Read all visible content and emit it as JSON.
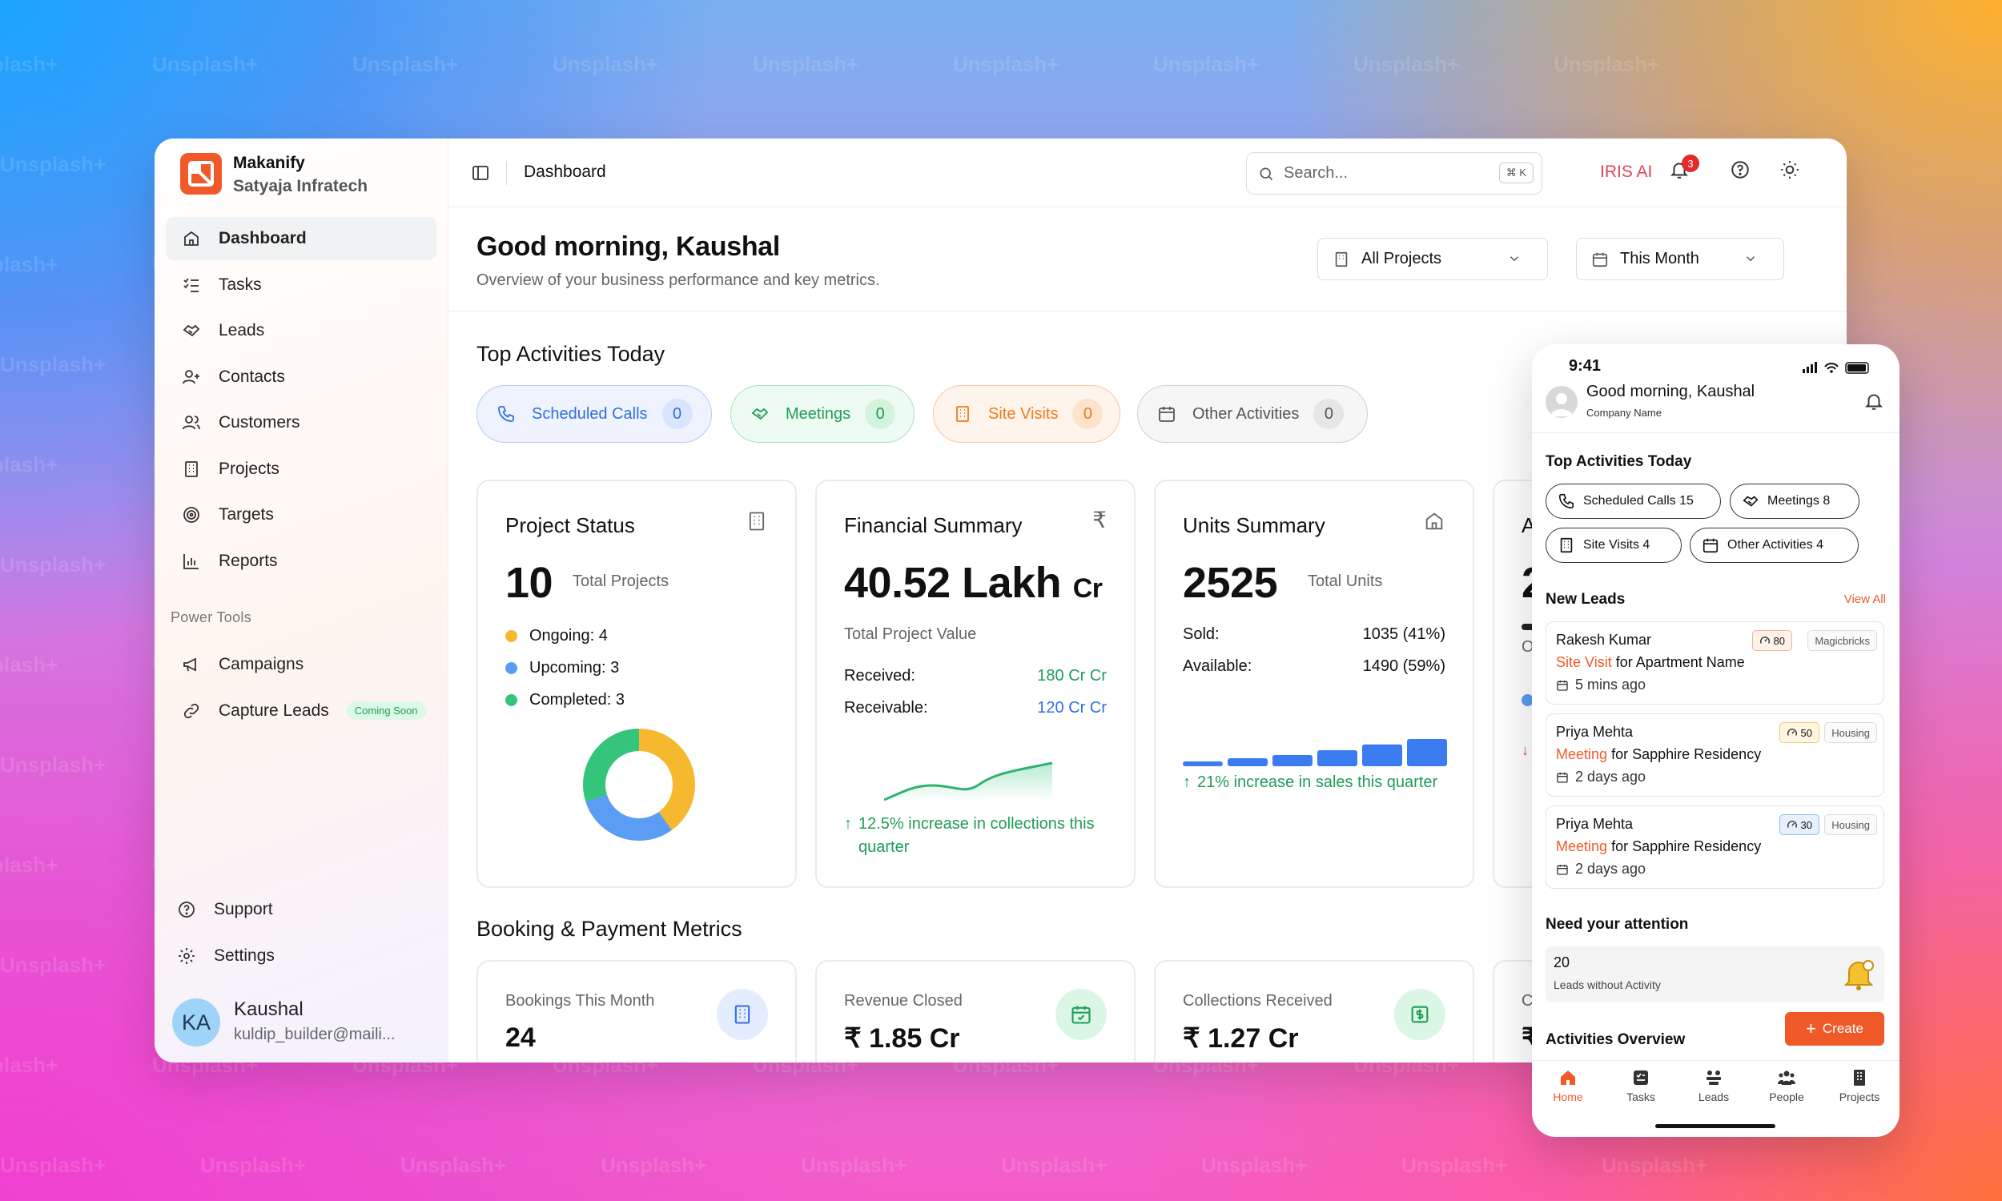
{
  "watermark": "Unsplash+",
  "sidebar": {
    "brand_name": "Makanify",
    "company": "Satyaja Infratech",
    "items": [
      {
        "label": "Dashboard"
      },
      {
        "label": "Tasks"
      },
      {
        "label": "Leads"
      },
      {
        "label": "Contacts"
      },
      {
        "label": "Customers"
      },
      {
        "label": "Projects"
      },
      {
        "label": "Targets"
      },
      {
        "label": "Reports"
      }
    ],
    "section_label": "Power Tools",
    "tools": [
      {
        "label": "Campaigns"
      },
      {
        "label": "Capture Leads",
        "badge": "Coming Soon"
      }
    ],
    "support": "Support",
    "settings": "Settings",
    "user": {
      "initials": "KA",
      "name": "Kaushal",
      "email": "kuldip_builder@maili..."
    }
  },
  "topbar": {
    "breadcrumb": "Dashboard",
    "search_placeholder": "Search...",
    "shortcut": "⌘ K",
    "iris_label": "IRIS AI",
    "notifications": "3"
  },
  "header": {
    "greeting": "Good morning, Kaushal",
    "subtitle": "Overview of your business performance and key metrics.",
    "project_filter": "All Projects",
    "period_filter": "This Month"
  },
  "activities": {
    "title": "Top Activities Today",
    "items": [
      {
        "label": "Scheduled Calls",
        "count": "0"
      },
      {
        "label": "Meetings",
        "count": "0"
      },
      {
        "label": "Site Visits",
        "count": "0"
      },
      {
        "label": "Other Activities",
        "count": "0"
      }
    ]
  },
  "project_status": {
    "title": "Project Status",
    "total": "10",
    "total_label": "Total Projects",
    "legend": [
      {
        "label": "Ongoing: 4",
        "value": 4,
        "color": "#f5b82e"
      },
      {
        "label": "Upcoming: 3",
        "value": 3,
        "color": "#5b9cf5"
      },
      {
        "label": "Completed: 3",
        "value": 3,
        "color": "#34c47a"
      }
    ]
  },
  "financial": {
    "title": "Financial Summary",
    "value": "40.52 Lakh",
    "unit": "Cr",
    "value_label": "Total Project Value",
    "received_label": "Received:",
    "received": "180 Cr Cr",
    "receivable_label": "Receivable:",
    "receivable": "120 Cr Cr",
    "trend": "12.5% increase in collections this quarter"
  },
  "units": {
    "title": "Units Summary",
    "total": "2525",
    "total_label": "Total Units",
    "sold_label": "Sold:",
    "sold": "1035 (41%)",
    "available_label": "Available:",
    "available": "1490 (59%)",
    "trend": "21% increase in sales this quarter",
    "bars": [
      0.15,
      0.25,
      0.35,
      0.5,
      0.68,
      0.85
    ]
  },
  "partial_card": {
    "letter": "A",
    "digit": "2",
    "row": "O"
  },
  "booking": {
    "title": "Booking & Payment Metrics",
    "cards": [
      {
        "label": "Bookings This Month",
        "value": "24"
      },
      {
        "label": "Revenue Closed",
        "value": "₹ 1.85 Cr"
      },
      {
        "label": "Collections Received",
        "value": "₹ 1.27 Cr"
      }
    ],
    "partial_label": "C",
    "partial_value": "₹"
  },
  "mobile": {
    "time": "9:41",
    "greeting": "Good morning, Kaushal",
    "company": "Company Name",
    "activities_title": "Top Activities Today",
    "chips": [
      {
        "label": "Scheduled Calls",
        "count": "15"
      },
      {
        "label": "Meetings",
        "count": "8"
      },
      {
        "label": "Site Visits",
        "count": "4"
      },
      {
        "label": "Other Activities",
        "count": "4"
      }
    ],
    "leads_title": "New Leads",
    "view_all": "View All",
    "leads": [
      {
        "name": "Rakesh Kumar",
        "score": "80",
        "source": "Magicbricks",
        "activity": "Site Visit",
        "for": "for",
        "project": "Apartment Name",
        "time": "5 mins ago"
      },
      {
        "name": "Priya Mehta",
        "score": "50",
        "source": "Housing",
        "activity": "Meeting",
        "for": "for",
        "project": "Sapphire Residency",
        "time": "2 days ago"
      },
      {
        "name": "Priya Mehta",
        "score": "30",
        "source": "Housing",
        "activity": "Meeting",
        "for": "for",
        "project": "Sapphire Residency",
        "time": "2 days ago"
      }
    ],
    "attention_title": "Need your attention",
    "attention_count": "20",
    "attention_label": "Leads without Activity",
    "create": "Create",
    "overview_title": "Activities Overview",
    "tabs": [
      {
        "label": "Home"
      },
      {
        "label": "Tasks"
      },
      {
        "label": "Leads"
      },
      {
        "label": "People"
      },
      {
        "label": "Projects"
      }
    ]
  },
  "colors": {
    "accent": "#f05a28",
    "blue": "#2f6fe0",
    "green": "#1f9d55",
    "orange": "#f07a1a"
  }
}
